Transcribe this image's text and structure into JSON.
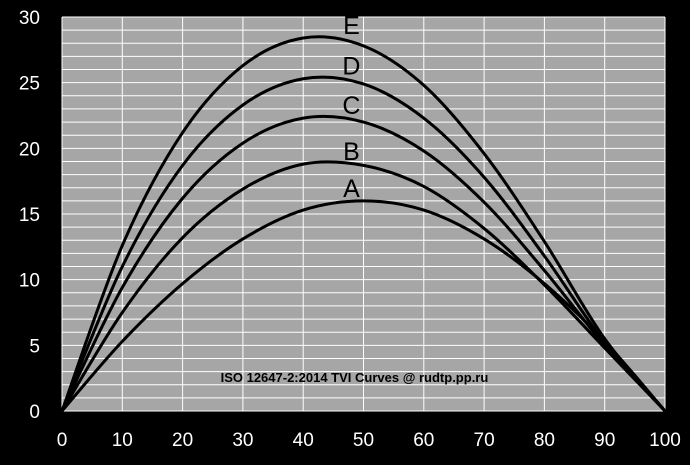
{
  "chart_data": {
    "type": "line",
    "title": "",
    "annotation": "ISO 12647-2:2014 TVI Curves @ rudtp.pp.ru",
    "xlabel": "",
    "ylabel": "",
    "xlim": [
      0,
      100
    ],
    "ylim": [
      0,
      30
    ],
    "x_ticks": [
      0,
      10,
      20,
      30,
      40,
      50,
      60,
      70,
      80,
      90,
      100
    ],
    "y_ticks": [
      0,
      5,
      10,
      15,
      20,
      25,
      30
    ],
    "minor_y_step": 1,
    "grid": true,
    "colors": {
      "background": "#000000",
      "plot_area": "#a6a6a6",
      "grid": "#ffffff",
      "series": "#000000",
      "tick_text": "#ffffff"
    },
    "series": [
      {
        "name": "A",
        "x": [
          0,
          10,
          20,
          30,
          40,
          50,
          60,
          70,
          80,
          90,
          100
        ],
        "y": [
          0,
          5.3,
          9.7,
          13.1,
          15.3,
          16.0,
          15.3,
          13.1,
          9.7,
          5.3,
          0
        ]
      },
      {
        "name": "B",
        "x": [
          0,
          10,
          20,
          30,
          40,
          50,
          60,
          70,
          80,
          90,
          100
        ],
        "y": [
          0,
          7.5,
          13.2,
          16.9,
          18.8,
          18.7,
          17.1,
          13.9,
          9.6,
          4.8,
          0
        ]
      },
      {
        "name": "C",
        "x": [
          0,
          10,
          20,
          30,
          40,
          50,
          60,
          70,
          80,
          90,
          100
        ],
        "y": [
          0,
          9.4,
          16.2,
          20.4,
          22.3,
          22.0,
          19.8,
          15.9,
          10.7,
          5.0,
          0
        ]
      },
      {
        "name": "D",
        "x": [
          0,
          10,
          20,
          30,
          40,
          50,
          60,
          70,
          80,
          90,
          100
        ],
        "y": [
          0,
          11.0,
          18.7,
          23.3,
          25.3,
          24.9,
          22.3,
          17.8,
          11.8,
          5.2,
          0
        ]
      },
      {
        "name": "E",
        "x": [
          0,
          10,
          20,
          30,
          40,
          50,
          60,
          70,
          80,
          90,
          100
        ],
        "y": [
          0,
          12.6,
          21.2,
          26.3,
          28.4,
          27.8,
          24.8,
          19.6,
          12.9,
          5.5,
          0
        ]
      }
    ]
  }
}
